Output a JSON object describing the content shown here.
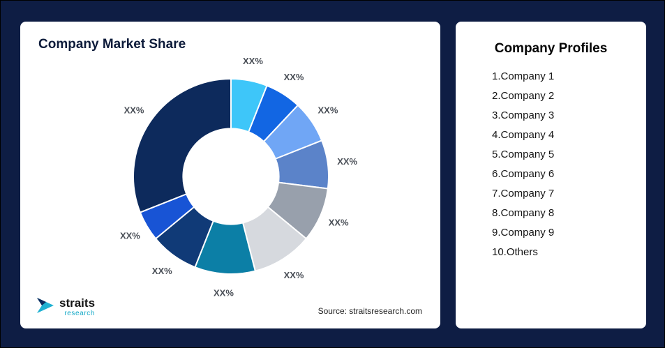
{
  "left_card": {
    "title": "Company Market Share",
    "source_text": "Source: straitsresearch.com",
    "logo": {
      "name": "straits",
      "sub": "research"
    }
  },
  "right_card": {
    "title": "Company Profiles",
    "items": [
      "1.Company 1",
      "2.Company 2",
      "3.Company 3",
      "4.Company 4",
      "5.Company 5",
      "6.Company 6",
      "7.Company 7",
      "8.Company 8",
      "9.Company 9",
      "10.Others"
    ]
  },
  "chart_data": {
    "type": "pie",
    "subtype": "donut",
    "title": "Company Market Share",
    "categories": [
      "Company 1",
      "Company 2",
      "Company 3",
      "Company 4",
      "Company 5",
      "Company 6",
      "Company 7",
      "Company 8",
      "Company 9",
      "Others"
    ],
    "values": [
      6,
      6,
      7,
      8,
      9,
      10,
      10,
      8,
      5,
      31
    ],
    "display_labels": [
      "XX%",
      "XX%",
      "XX%",
      "XX%",
      "XX%",
      "XX%",
      "XX%",
      "XX%",
      "XX%",
      "XX%"
    ],
    "colors": [
      "#3ec6f9",
      "#1266e3",
      "#70a6f5",
      "#5b83c9",
      "#98a0ac",
      "#d6d9de",
      "#0c7fa6",
      "#103a77",
      "#1854d5",
      "#0d2a5c"
    ],
    "start_angle_deg": -90,
    "direction": "clockwise",
    "inner_radius_ratio": 0.49,
    "segment_gap_color": "#ffffff",
    "legend": "none"
  },
  "theme": {
    "page_bg": "#0e1d44",
    "card_bg": "#ffffff",
    "title_color": "#0d1b3a",
    "label_color": "#4a4f57",
    "logo_accent": "#14a9c7"
  }
}
